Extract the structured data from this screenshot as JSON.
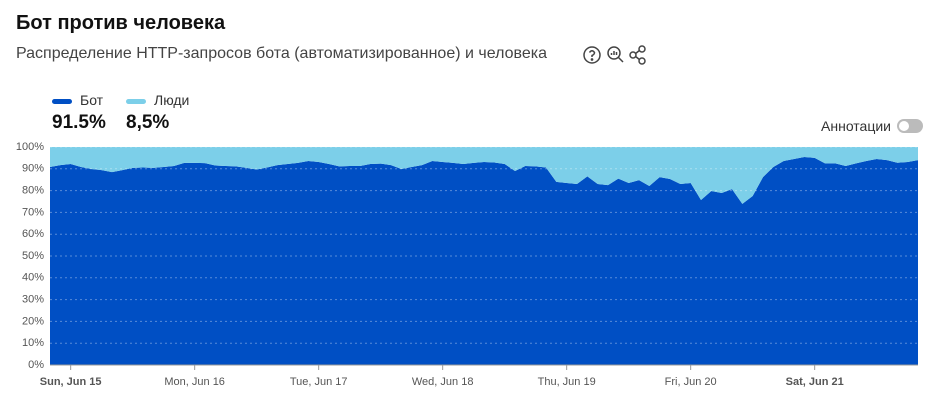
{
  "chart_data": {
    "type": "area",
    "title": "Бот против человека",
    "subtitle": "Распределение HTTP-запросов бота (автоматизированное) и человека",
    "legend_values": [
      "91.5%",
      "8,5%"
    ],
    "annotations_label": "Аннотации",
    "categories": [
      null,
      null,
      "Sun, Jun 15",
      null,
      null,
      null,
      null,
      null,
      null,
      null,
      null,
      null,
      null,
      null,
      "Mon, Jun 16",
      null,
      null,
      null,
      null,
      null,
      null,
      null,
      null,
      null,
      null,
      null,
      "Tue, Jun 17",
      null,
      null,
      null,
      null,
      null,
      null,
      null,
      null,
      null,
      null,
      null,
      "Wed, Jun 18",
      null,
      null,
      null,
      null,
      null,
      null,
      null,
      null,
      null,
      null,
      null,
      "Thu, Jun 19",
      null,
      null,
      null,
      null,
      null,
      null,
      null,
      null,
      null,
      null,
      null,
      "Fri, Jun 20",
      null,
      null,
      null,
      null,
      null,
      null,
      null,
      null,
      null,
      null,
      null,
      "Sat, Jun 21",
      null,
      null,
      null,
      null,
      null,
      null,
      null,
      null,
      null,
      null
    ],
    "series": [
      {
        "name": "Бот",
        "color": "#004fc4",
        "values": [
          90.8,
          91.7,
          92.2,
          90.8,
          89.9,
          89.4,
          88.5,
          89.4,
          90.4,
          90.6,
          90.4,
          90.8,
          91.3,
          92.7,
          92.7,
          92.6,
          91.5,
          91.3,
          91.1,
          90.4,
          89.7,
          90.6,
          91.7,
          92.2,
          92.7,
          93.6,
          93.1,
          92.2,
          91.1,
          91.3,
          91.3,
          92.2,
          92.4,
          91.7,
          89.9,
          90.8,
          91.7,
          93.6,
          93.1,
          92.7,
          92.2,
          92.7,
          93.1,
          92.9,
          92.2,
          89.0,
          91.3,
          91.1,
          90.6,
          84.0,
          83.5,
          83.0,
          86.5,
          83.0,
          82.5,
          85.5,
          83.5,
          84.8,
          82.1,
          86.2,
          85.3,
          83.0,
          83.5,
          75.7,
          79.8,
          78.9,
          80.7,
          73.9,
          77.5,
          86.2,
          90.8,
          93.6,
          94.5,
          95.4,
          95.0,
          92.5,
          92.5,
          91.3,
          92.5,
          93.6,
          94.5,
          94.0,
          92.8,
          93.1,
          94.0
        ]
      },
      {
        "name": "Люди",
        "color": "#7ccfe9",
        "values": [
          9.2,
          8.3,
          7.8,
          9.2,
          10.1,
          10.6,
          11.5,
          10.6,
          9.6,
          9.4,
          9.6,
          9.2,
          8.7,
          7.3,
          7.3,
          7.4,
          8.5,
          8.7,
          8.9,
          9.6,
          10.3,
          9.4,
          8.3,
          7.8,
          7.3,
          6.4,
          6.9,
          7.8,
          8.9,
          8.7,
          8.7,
          7.8,
          7.6,
          8.3,
          10.1,
          9.2,
          8.3,
          6.4,
          6.9,
          7.3,
          7.8,
          7.3,
          6.9,
          7.1,
          7.8,
          11.0,
          8.7,
          8.9,
          9.4,
          16.0,
          16.5,
          17.0,
          13.5,
          17.0,
          17.5,
          14.5,
          16.5,
          15.2,
          17.9,
          13.8,
          14.7,
          17.0,
          16.5,
          24.3,
          20.2,
          21.1,
          19.3,
          26.1,
          22.5,
          13.8,
          9.2,
          6.4,
          5.5,
          4.6,
          5.0,
          7.5,
          7.5,
          8.7,
          7.5,
          6.4,
          5.5,
          6.0,
          7.2,
          6.9,
          6.0
        ]
      }
    ],
    "stacked": true,
    "ylim": [
      0,
      100
    ],
    "yticks": [
      {
        "value": 0,
        "label": "0%"
      },
      {
        "value": 10,
        "label": "10%"
      },
      {
        "value": 20,
        "label": "20%"
      },
      {
        "value": 30,
        "label": "30%"
      },
      {
        "value": 40,
        "label": "40%"
      },
      {
        "value": 50,
        "label": "50%"
      },
      {
        "value": 60,
        "label": "60%"
      },
      {
        "value": 70,
        "label": "70%"
      },
      {
        "value": 80,
        "label": "80%"
      },
      {
        "value": 90,
        "label": "90%"
      },
      {
        "value": 100,
        "label": "100%"
      }
    ],
    "grid": true
  }
}
